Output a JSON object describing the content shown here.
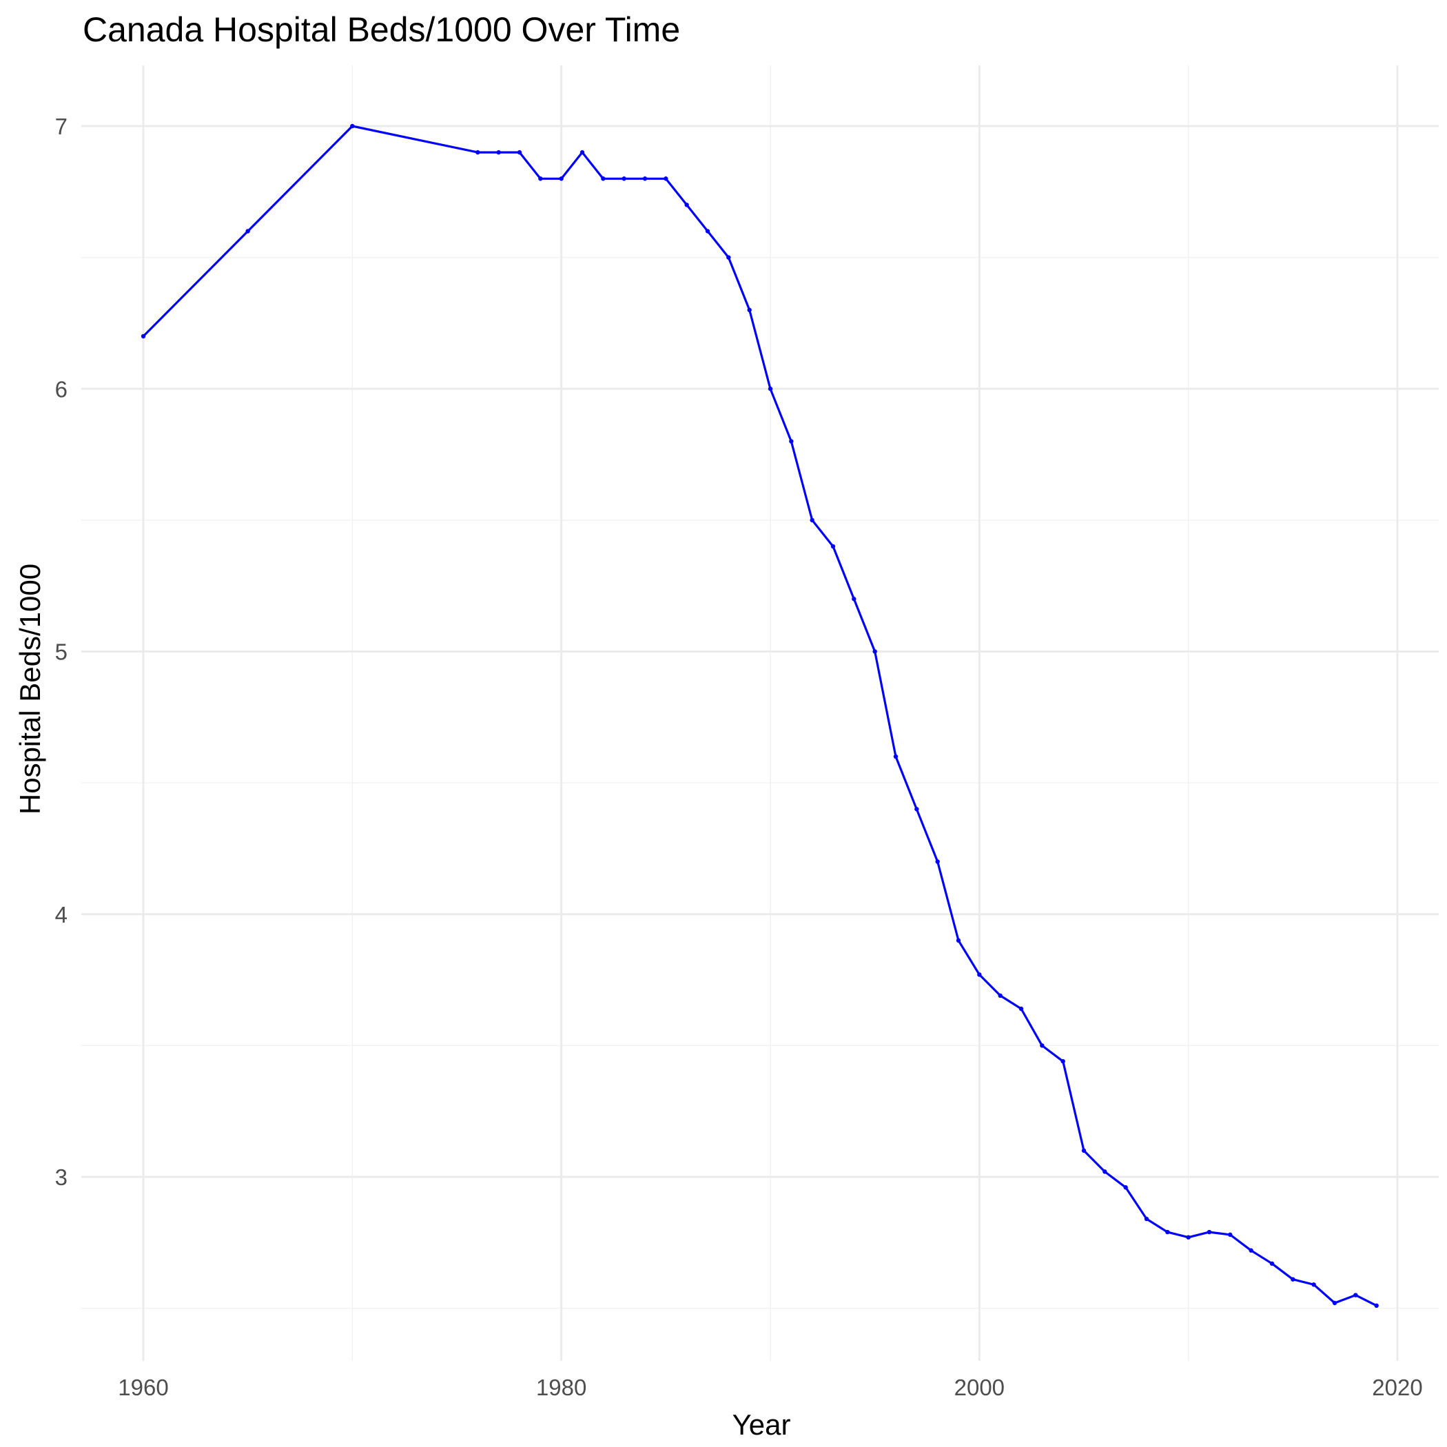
{
  "chart_data": {
    "type": "line",
    "title": "Canada Hospital Beds/1000 Over Time",
    "xlabel": "Year",
    "ylabel": "Hospital Beds/1000",
    "xlim": [
      1957,
      2021
    ],
    "ylim": [
      2.35,
      7.2
    ],
    "x_ticks": [
      1960,
      1980,
      2000,
      2020
    ],
    "x_tick_labels": [
      "1960",
      "1980",
      "2000",
      "2020"
    ],
    "y_ticks": [
      3,
      4,
      5,
      6,
      7
    ],
    "y_tick_labels": [
      "3",
      "4",
      "5",
      "6",
      "7"
    ],
    "grid": true,
    "legend": "none",
    "color": "#0000ff",
    "series": [
      {
        "x": [
          1960,
          1965,
          1970,
          1976,
          1977,
          1978,
          1979,
          1980,
          1981,
          1982,
          1983,
          1984,
          1985,
          1986,
          1987,
          1988,
          1989,
          1990,
          1991,
          1992,
          1993,
          1994,
          1995,
          1996,
          1997,
          1998,
          1999,
          2000,
          2001,
          2002,
          2003,
          2004,
          2005,
          2006,
          2007,
          2008,
          2009,
          2010,
          2011,
          2012,
          2013,
          2014,
          2015,
          2016,
          2017,
          2018,
          2019
        ],
        "values": [
          6.2,
          6.6,
          7.0,
          6.9,
          6.9,
          6.9,
          6.8,
          6.8,
          6.9,
          6.8,
          6.8,
          6.8,
          6.8,
          6.7,
          6.6,
          6.5,
          6.3,
          6.0,
          5.8,
          5.5,
          5.4,
          5.2,
          5.0,
          4.6,
          4.4,
          4.2,
          3.9,
          3.77,
          3.69,
          3.64,
          3.5,
          3.44,
          3.1,
          3.02,
          2.96,
          2.84,
          2.79,
          2.77,
          2.79,
          2.78,
          2.72,
          2.67,
          2.61,
          2.59,
          2.52,
          2.55,
          2.51
        ]
      }
    ]
  }
}
